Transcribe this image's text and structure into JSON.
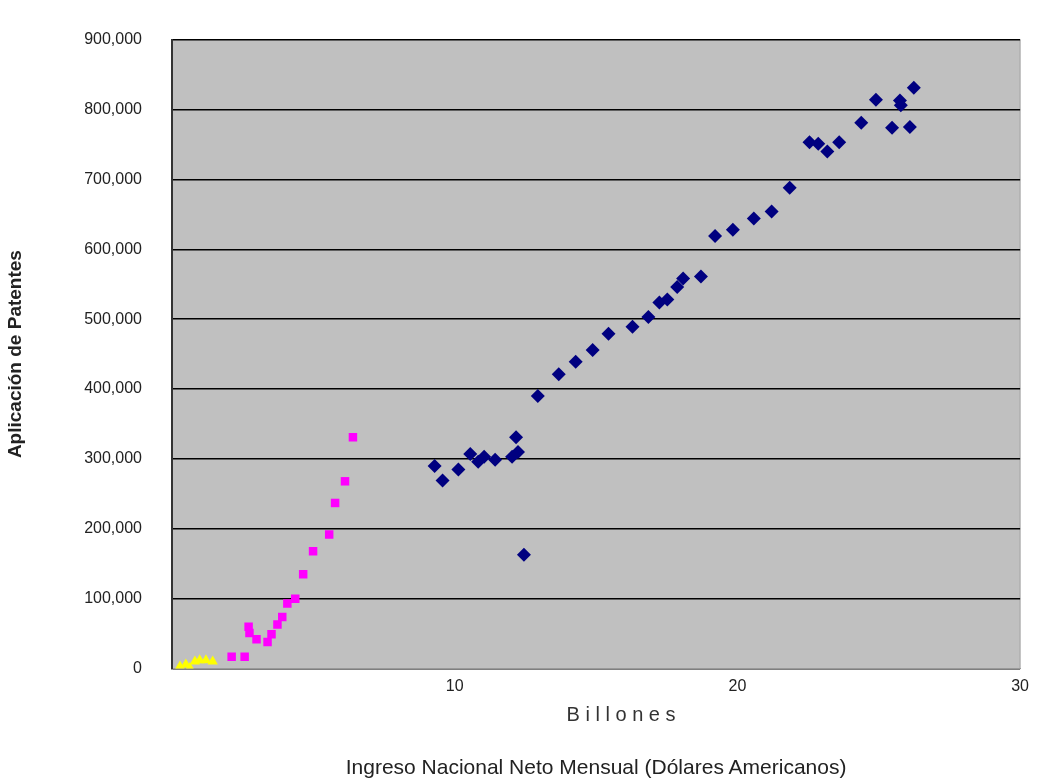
{
  "chart_data": {
    "type": "scatter",
    "xlabel": "Ingreso Nacional Neto Mensual (Dólares Americanos)",
    "ylabel": "Aplicación de Patentes",
    "annotations": [
      "B i l l o n e s"
    ],
    "xlim": [
      0,
      30
    ],
    "xticks": [
      10,
      20,
      30
    ],
    "ylim": [
      0,
      900000
    ],
    "yticks": [
      0,
      {
        "value": 100000,
        "label": "100,000"
      },
      {
        "value": 200000,
        "label": "200,000"
      },
      {
        "value": 300000,
        "label": "300,000"
      },
      {
        "value": 400000,
        "label": "400,000"
      },
      {
        "value": 500000,
        "label": "500,000"
      },
      {
        "value": 600000,
        "label": "600,000"
      },
      {
        "value": 700000,
        "label": "700,000"
      },
      {
        "value": 800000,
        "label": "800,000"
      },
      {
        "value": 900000,
        "label": "900,000"
      }
    ],
    "grid": "y",
    "legend": false,
    "series": [
      {
        "color": "#000080",
        "marker": "diamond",
        "x": [
          9.29,
          9.57,
          10.13,
          10.55,
          10.69,
          10.83,
          11.04,
          11.43,
          12.03,
          12.17,
          12.24,
          12.45,
          12.94,
          13.68,
          14.28,
          14.88,
          15.44,
          16.29,
          16.85,
          17.24,
          17.52,
          17.87,
          18.08,
          18.71,
          19.21,
          19.84,
          20.58,
          21.21,
          21.85,
          22.55,
          22.86,
          23.18,
          23.6,
          24.38,
          24.9,
          25.47,
          25.75,
          25.78,
          26.1,
          26.24
        ],
        "values": [
          290000,
          269000,
          285000,
          307000,
          null,
          296000,
          303000,
          299000,
          303000,
          331000,
          310000,
          163000,
          390000,
          421000,
          439000,
          456000,
          479000,
          489000,
          503000,
          524000,
          528000,
          546000,
          558000,
          561000,
          619000,
          628000,
          644000,
          654000,
          688000,
          753000,
          751000,
          740000,
          753000,
          781000,
          814000,
          774000,
          813000,
          806000,
          775000,
          831000
        ]
      },
      {
        "color": "#ff00ff",
        "marker": "square",
        "x": [
          2.11,
          2.57,
          2.71,
          2.74,
          2.99,
          3.38,
          3.52,
          3.73,
          3.9,
          4.08,
          4.36,
          4.64,
          4.99,
          5.56,
          5.77,
          6.12,
          6.4
        ],
        "values": [
          17000,
          17000,
          60000,
          51000,
          42000,
          38000,
          49000,
          63000,
          74000,
          93000,
          100000,
          135000,
          168000,
          192000,
          237000,
          268000,
          331000
        ]
      },
      {
        "color": "#ffff00",
        "marker": "triangle",
        "x": [
          0.28,
          0.49,
          0.63,
          0.81,
          0.98,
          1.2,
          1.44
        ],
        "values": [
          3000,
          6000,
          1000,
          10000,
          12000,
          12000,
          10000
        ]
      }
    ]
  }
}
